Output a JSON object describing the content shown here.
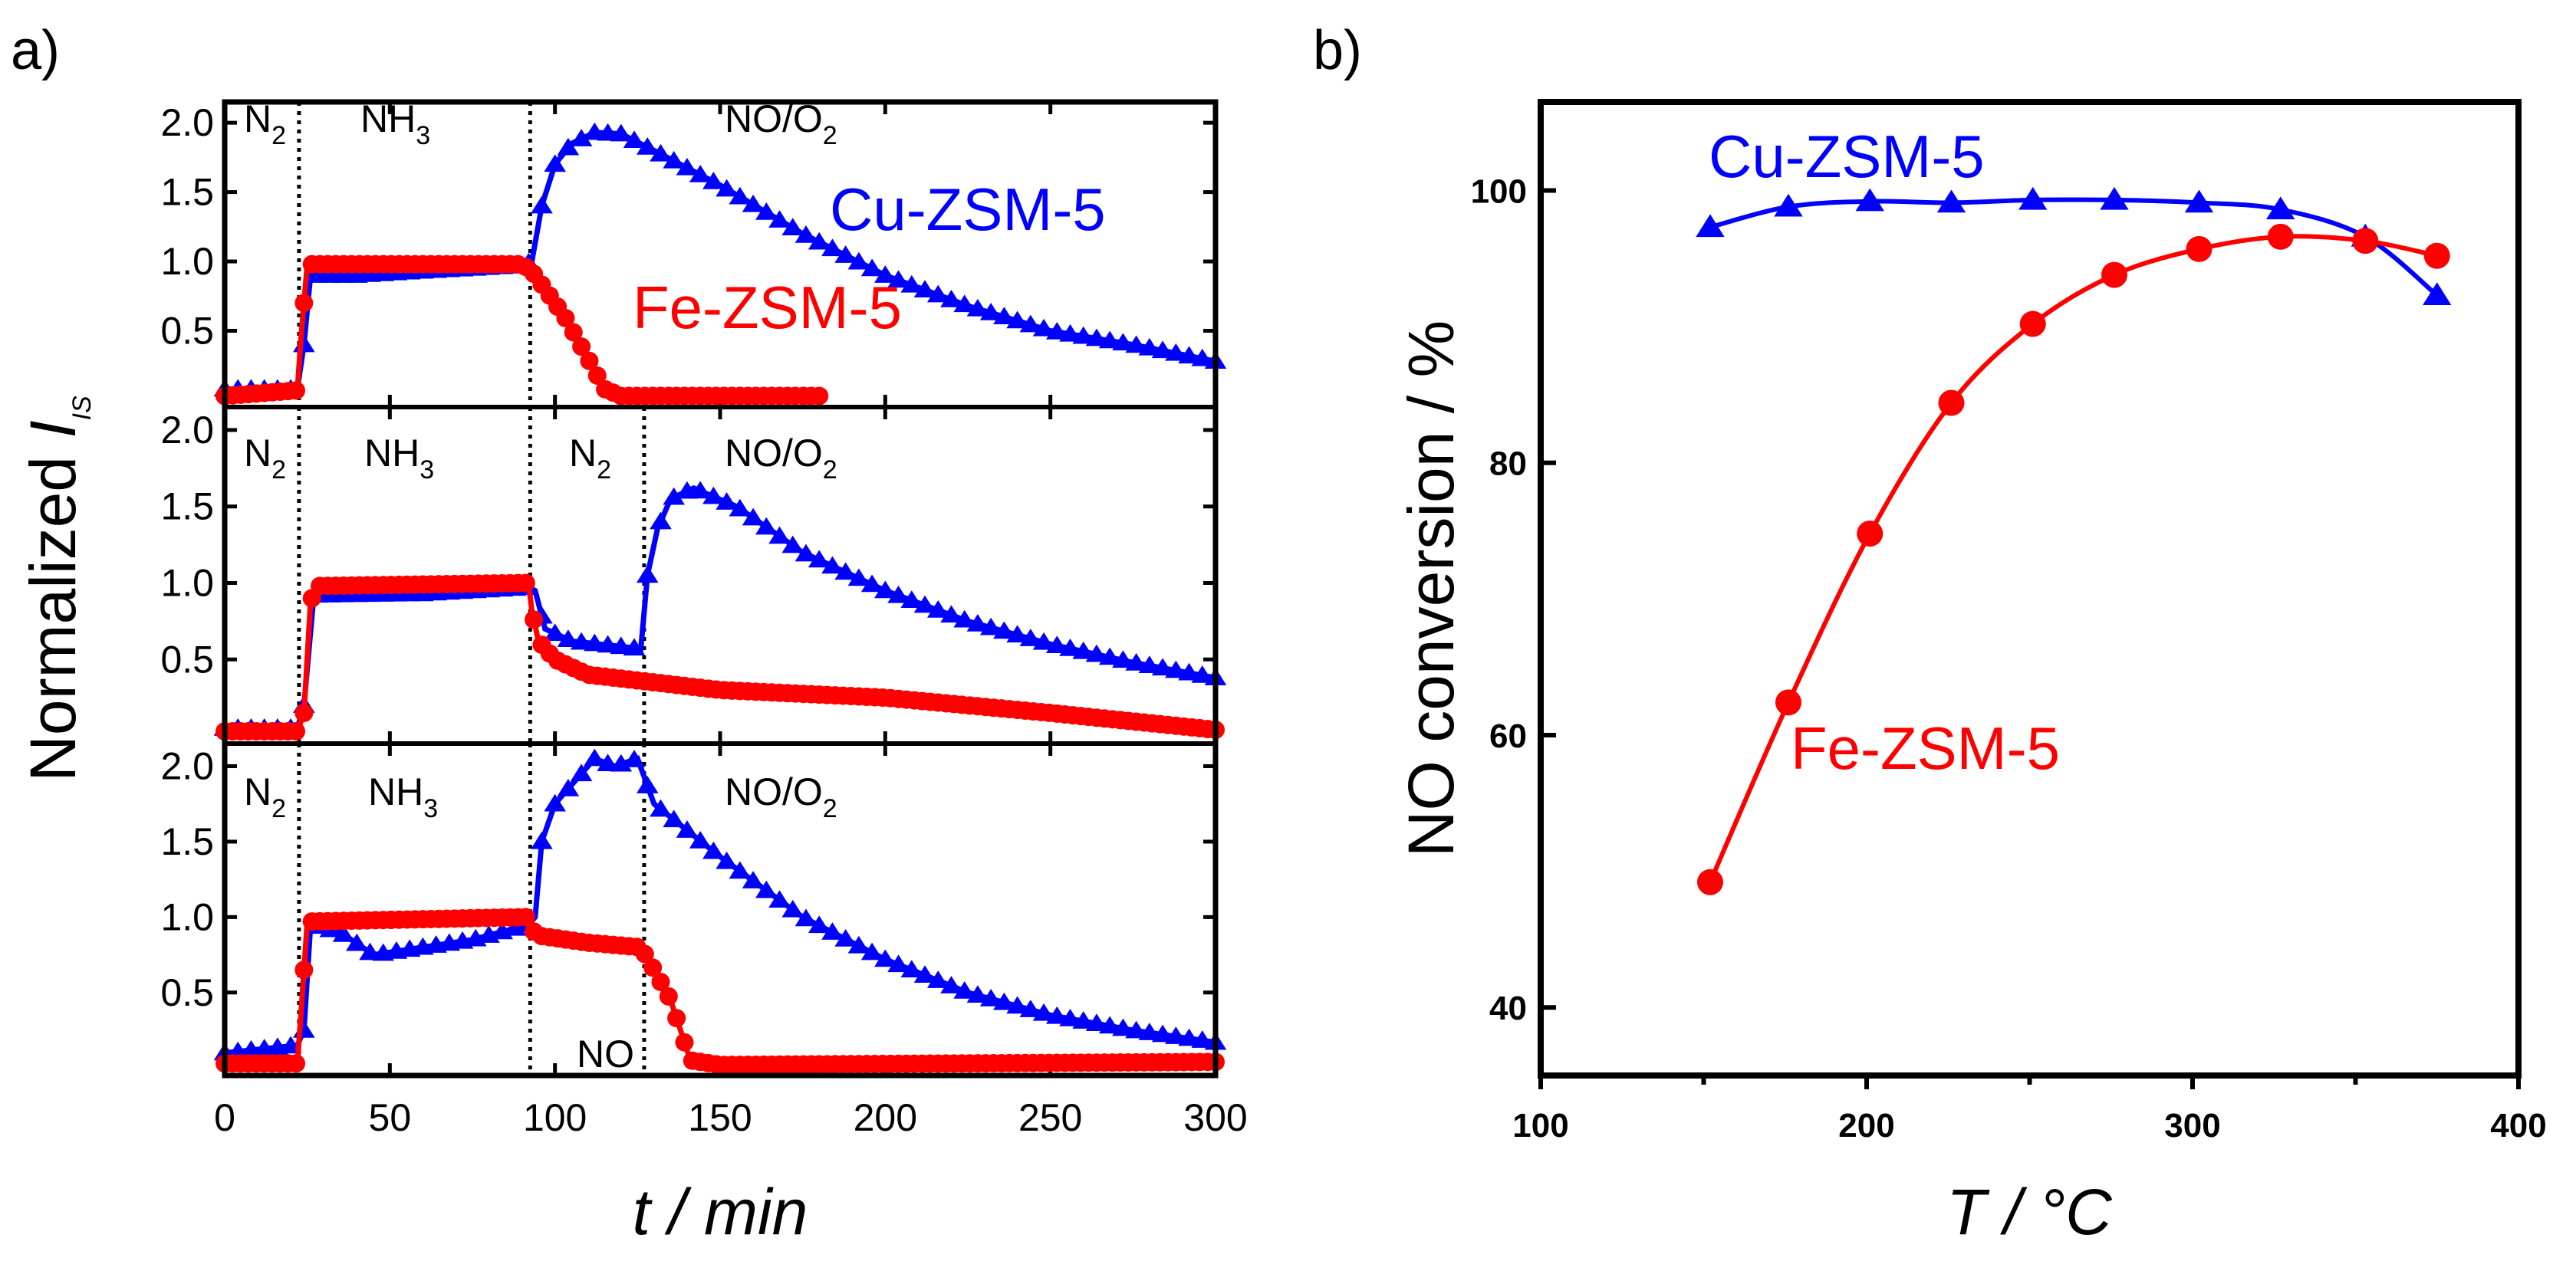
{
  "chart_data": [
    {
      "panel_label": "a)",
      "type": "line",
      "xlabel": "t / min",
      "ylabel": {
        "main": "Normalized ",
        "italic": "I",
        "sub": "IS"
      },
      "xlim": [
        0,
        300
      ],
      "ylim": [
        -0.05,
        2.15
      ],
      "xticks": [
        "0",
        "50",
        "100",
        "150",
        "200",
        "250",
        "300"
      ],
      "xtick_values": [
        0,
        50,
        100,
        150,
        200,
        250,
        300
      ],
      "yticks": [
        "0.5",
        "1.0",
        "1.5",
        "2.0"
      ],
      "ytick_values": [
        0.5,
        1.0,
        1.5,
        2.0
      ],
      "colors": {
        "Cu-ZSM-5": "#0000ff",
        "Fe-ZSM-5": "#ff0000"
      },
      "series_labels": {
        "cu": "Cu-ZSM-5",
        "fe": "Fe-ZSM-5"
      },
      "subplots": [
        {
          "switch_times": [
            22.5,
            92.5
          ],
          "regions": [
            {
              "main": "N",
              "sub": "2"
            },
            {
              "main": "NH",
              "sub": "3"
            },
            {
              "main": "NO/O",
              "sub": "2"
            }
          ],
          "series": [
            {
              "name": "Cu-ZSM-5",
              "points": [
                [
                  0,
                  0.08
                ],
                [
                  22,
                  0.08
                ],
                [
                  24,
                  0.4
                ],
                [
                  26,
                  0.9
                ],
                [
                  40,
                  0.9
                ],
                [
                  60,
                  0.93
                ],
                [
                  90,
                  0.97
                ],
                [
                  93,
                  1.0
                ],
                [
                  96,
                  1.4
                ],
                [
                  100,
                  1.7
                ],
                [
                  105,
                  1.85
                ],
                [
                  112,
                  1.93
                ],
                [
                  120,
                  1.92
                ],
                [
                  130,
                  1.8
                ],
                [
                  150,
                  1.55
                ],
                [
                  175,
                  1.2
                ],
                [
                  200,
                  0.9
                ],
                [
                  225,
                  0.68
                ],
                [
                  250,
                  0.5
                ],
                [
                  275,
                  0.4
                ],
                [
                  300,
                  0.28
                ]
              ]
            },
            {
              "name": "Fe-ZSM-5",
              "points": [
                [
                  0,
                  0.03
                ],
                [
                  22,
                  0.07
                ],
                [
                  23,
                  0.42
                ],
                [
                  25,
                  0.98
                ],
                [
                  90,
                  0.98
                ],
                [
                  93,
                  0.93
                ],
                [
                  97,
                  0.8
                ],
                [
                  103,
                  0.6
                ],
                [
                  110,
                  0.3
                ],
                [
                  115,
                  0.08
                ],
                [
                  120,
                  0.03
                ],
                [
                  182,
                  0.03
                ]
              ]
            }
          ]
        },
        {
          "switch_times": [
            22.5,
            92.5,
            127
          ],
          "regions": [
            {
              "main": "N",
              "sub": "2"
            },
            {
              "main": "NH",
              "sub": "3"
            },
            {
              "main": "N",
              "sub": "2"
            },
            {
              "main": "NO/O",
              "sub": "2"
            }
          ],
          "series": [
            {
              "name": "Cu-ZSM-5",
              "points": [
                [
                  0,
                  0.05
                ],
                [
                  22,
                  0.05
                ],
                [
                  24,
                  0.2
                ],
                [
                  27,
                  0.92
                ],
                [
                  60,
                  0.93
                ],
                [
                  92,
                  0.97
                ],
                [
                  94,
                  0.95
                ],
                [
                  97,
                  0.7
                ],
                [
                  105,
                  0.62
                ],
                [
                  126,
                  0.57
                ],
                [
                  128,
                  1.05
                ],
                [
                  131,
                  1.35
                ],
                [
                  135,
                  1.55
                ],
                [
                  142,
                  1.62
                ],
                [
                  155,
                  1.5
                ],
                [
                  175,
                  1.2
                ],
                [
                  200,
                  0.95
                ],
                [
                  225,
                  0.75
                ],
                [
                  250,
                  0.6
                ],
                [
                  275,
                  0.48
                ],
                [
                  300,
                  0.38
                ]
              ]
            },
            {
              "name": "Fe-ZSM-5",
              "points": [
                [
                  0,
                  0.03
                ],
                [
                  22,
                  0.03
                ],
                [
                  24,
                  0.15
                ],
                [
                  26,
                  0.88
                ],
                [
                  28,
                  0.98
                ],
                [
                  92,
                  1.0
                ],
                [
                  93,
                  0.82
                ],
                [
                  95,
                  0.62
                ],
                [
                  100,
                  0.5
                ],
                [
                  110,
                  0.4
                ],
                [
                  130,
                  0.35
                ],
                [
                  150,
                  0.3
                ],
                [
                  200,
                  0.25
                ],
                [
                  250,
                  0.15
                ],
                [
                  300,
                  0.04
                ]
              ]
            }
          ]
        },
        {
          "switch_times": [
            22.5,
            92.5,
            127
          ],
          "regions": [
            {
              "main": "N",
              "sub": "2"
            },
            {
              "main": "NH",
              "sub": "3"
            },
            {
              "main": "NO",
              "sub": ""
            },
            {
              "main": "NO/O",
              "sub": "2"
            }
          ],
          "series": [
            {
              "name": "Cu-ZSM-5",
              "points": [
                [
                  0,
                  0.1
                ],
                [
                  22,
                  0.15
                ],
                [
                  24,
                  0.25
                ],
                [
                  26,
                  0.95
                ],
                [
                  35,
                  0.9
                ],
                [
                  45,
                  0.75
                ],
                [
                  60,
                  0.8
                ],
                [
                  75,
                  0.85
                ],
                [
                  92,
                  0.95
                ],
                [
                  94,
                  1.0
                ],
                [
                  96,
                  1.5
                ],
                [
                  100,
                  1.75
                ],
                [
                  112,
                  2.05
                ],
                [
                  118,
                  2.0
                ],
                [
                  125,
                  2.05
                ],
                [
                  130,
                  1.75
                ],
                [
                  150,
                  1.4
                ],
                [
                  175,
                  1.0
                ],
                [
                  200,
                  0.72
                ],
                [
                  225,
                  0.5
                ],
                [
                  250,
                  0.35
                ],
                [
                  275,
                  0.25
                ],
                [
                  300,
                  0.17
                ]
              ]
            },
            {
              "name": "Fe-ZSM-5",
              "points": [
                [
                  0,
                  0.03
                ],
                [
                  22,
                  0.03
                ],
                [
                  23,
                  0.33
                ],
                [
                  25,
                  0.97
                ],
                [
                  92,
                  1.0
                ],
                [
                  94,
                  0.88
                ],
                [
                  110,
                  0.83
                ],
                [
                  126,
                  0.8
                ],
                [
                  130,
                  0.65
                ],
                [
                  135,
                  0.45
                ],
                [
                  138,
                  0.25
                ],
                [
                  141,
                  0.05
                ],
                [
                  150,
                  0.02
                ],
                [
                  300,
                  0.04
                ]
              ]
            }
          ]
        }
      ]
    },
    {
      "panel_label": "b)",
      "type": "line",
      "xlabel": "T / °C",
      "ylabel": "NO conversion / %",
      "xlim": [
        100,
        400
      ],
      "ylim": [
        35,
        106.5
      ],
      "xticks": [
        "100",
        "200",
        "300",
        "400"
      ],
      "xtick_values": [
        100,
        200,
        300,
        400
      ],
      "yticks": [
        "40",
        "60",
        "80",
        "100"
      ],
      "ytick_values": [
        40,
        60,
        80,
        100
      ],
      "x": [
        152,
        176,
        201,
        226,
        251,
        276,
        302,
        327,
        353,
        375
      ],
      "series": [
        {
          "name": "Cu-ZSM-5",
          "color": "#0000ff",
          "marker": "triangle",
          "values": [
            97.3,
            98.8,
            99.2,
            99.1,
            99.3,
            99.3,
            99.1,
            98.6,
            96.6,
            92.3
          ]
        },
        {
          "name": "Fe-ZSM-5",
          "color": "#ff0000",
          "marker": "circle",
          "values": [
            49.2,
            62.4,
            74.8,
            84.4,
            90.2,
            93.8,
            95.7,
            96.6,
            96.3,
            95.2
          ]
        }
      ]
    }
  ]
}
